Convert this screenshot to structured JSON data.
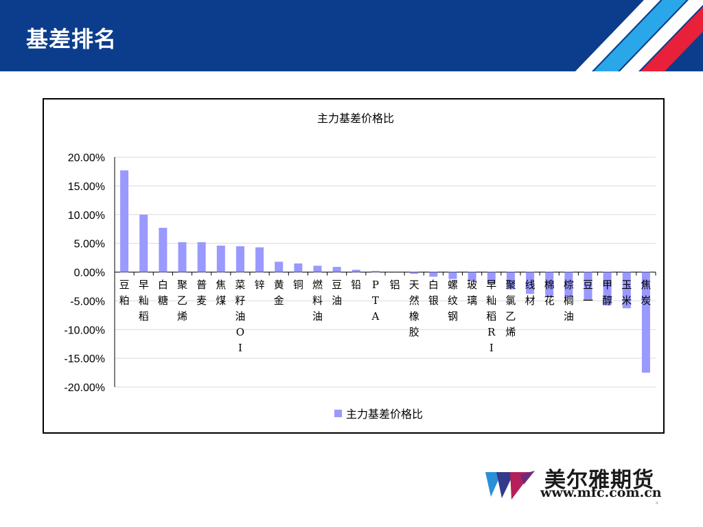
{
  "slide": {
    "title": "基差排名"
  },
  "logo": {
    "name": "美尔雅期货",
    "url": "www.mfc.com.cn"
  },
  "page_number": "4",
  "colors": {
    "header_bg": "#0c3d8c",
    "stripe_blue": "#2aa7e8",
    "stripe_red": "#e8203a",
    "bar": "#9999ff"
  },
  "chart_data": {
    "type": "bar",
    "title": "主力基差价格比",
    "legend": {
      "position": "bottom",
      "entries": [
        "主力基差价格比"
      ]
    },
    "ylim": [
      -0.2,
      0.2
    ],
    "yticks": [
      0.2,
      0.15,
      0.1,
      0.05,
      0,
      -0.05,
      -0.1,
      -0.15,
      -0.2
    ],
    "ytick_labels": [
      "20.00%",
      "15.00%",
      "10.00%",
      "5.00%",
      "0.00%",
      "-5.00%",
      "-10.00%",
      "-15.00%",
      "-20.00%"
    ],
    "grid": true,
    "categories": [
      "豆粕",
      "早籼稻",
      "白糖",
      "聚乙烯",
      "普麦",
      "焦煤",
      "菜籽油OI",
      "锌",
      "黄金",
      "铜",
      "燃料油",
      "豆油",
      "铅",
      "PTA",
      "铝",
      "天然橡胶",
      "白银",
      "螺纹钢",
      "玻璃",
      "早籼稻RI",
      "聚氯乙烯",
      "线材",
      "棉花",
      "棕榈油",
      "豆一",
      "甲醇",
      "玉米",
      "焦炭"
    ],
    "series": [
      {
        "name": "主力基差价格比",
        "values": [
          0.177,
          0.1,
          0.077,
          0.052,
          0.052,
          0.046,
          0.045,
          0.043,
          0.018,
          0.015,
          0.011,
          0.009,
          0.004,
          0.002,
          0.0,
          -0.003,
          -0.008,
          -0.012,
          -0.015,
          -0.02,
          -0.03,
          -0.038,
          -0.042,
          -0.045,
          -0.048,
          -0.058,
          -0.063,
          -0.175
        ]
      }
    ]
  }
}
